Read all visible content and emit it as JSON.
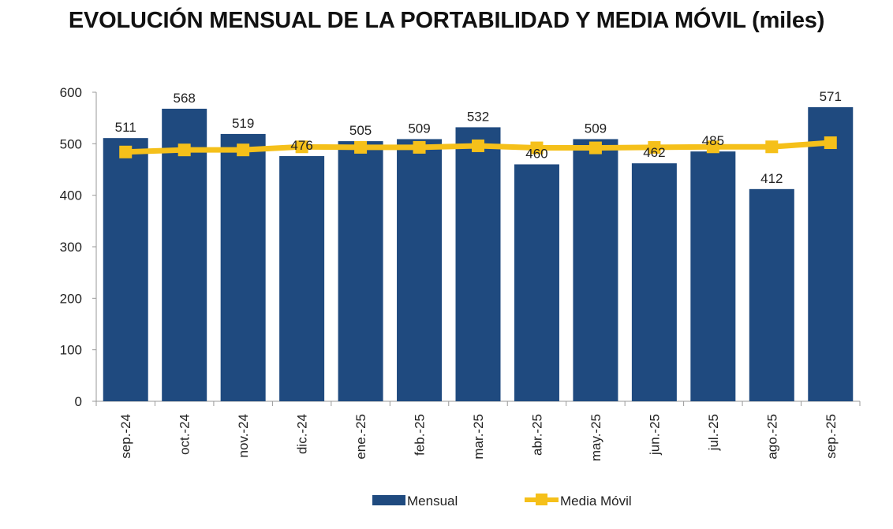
{
  "chart_data": {
    "type": "bar+line",
    "title": "EVOLUCIÓN MENSUAL DE LA PORTABILIDAD Y MEDIA MÓVIL (miles)",
    "categories": [
      "sep.-24",
      "oct.-24",
      "nov.-24",
      "dic.-24",
      "ene.-25",
      "feb.-25",
      "mar.-25",
      "abr.-25",
      "may.-25",
      "jun.-25",
      "jul.-25",
      "ago.-25",
      "sep.-25"
    ],
    "series": [
      {
        "name": "Mensual",
        "type": "bar",
        "color": "#1f4a7f",
        "values": [
          511,
          568,
          519,
          476,
          505,
          509,
          532,
          460,
          509,
          462,
          485,
          412,
          571
        ],
        "data_labels": true
      },
      {
        "name": "Media Móvil",
        "type": "line",
        "color": "#f5c01a",
        "values": [
          484,
          488,
          488,
          494,
          493,
          493,
          496,
          492,
          492,
          493,
          494,
          494,
          502
        ]
      }
    ],
    "ylim": [
      0,
      600
    ],
    "yticks": [
      0,
      100,
      200,
      300,
      400,
      500,
      600
    ],
    "grid": false,
    "legend": "bottom"
  }
}
